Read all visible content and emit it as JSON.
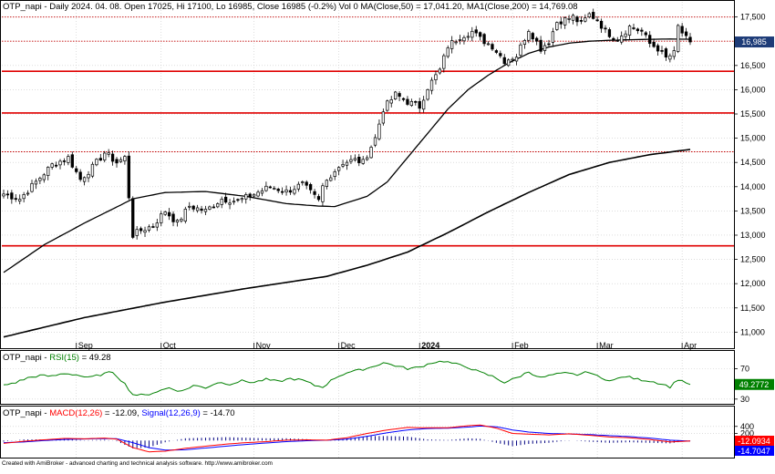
{
  "colors": {
    "background": "#ffffff",
    "grid": "#c8c8c8",
    "candle_up": "#ffffff",
    "candle_down": "#000000",
    "candle_border": "#000000",
    "ma50": "#000000",
    "ma200": "#000000",
    "support": "#e00000",
    "dotted": "#c00000",
    "rsi": "#008000",
    "macd": "#ff0000",
    "signal": "#0000ff",
    "hist": "#000080",
    "price_box": "#1e3c78",
    "rsi_box": "#008000",
    "macd_box": "#ff0000",
    "signal_box": "#0000ff"
  },
  "titles": {
    "price": "OTP_napi - Daily 2024. 04. 08. Open 17025, Hi 17100, Lo 16985, Close 16985 (-0.2%) Vol 0 MA(Close,50) = 17,041.20, MA1(Close,200) = 14,769.08",
    "rsi_prefix": "OTP_napi - ",
    "rsi_colored": "RSI(15)",
    "rsi_value": " = 49.28",
    "macd_prefix": "OTP_napi - ",
    "macd_colored": "MACD(12,26)",
    "macd_value": " = -12.09, ",
    "signal_colored": "Signal(12,26,9)",
    "signal_value": " = -14.70"
  },
  "footer": "Created with AmiBroker - advanced charting and technical analysis software. http://www.amibroker.com",
  "chart_data": [
    {
      "type": "candlestick",
      "name": "price",
      "ylim": [
        10800,
        17700
      ],
      "y_ticks": [
        11000,
        11500,
        12000,
        12500,
        13000,
        13500,
        14000,
        14500,
        15000,
        15500,
        16000,
        16500,
        17000,
        17500
      ],
      "y_tick_labels": [
        "11,000",
        "11,500",
        "12,000",
        "12,500",
        "13,000",
        "13,500",
        "14,000",
        "14,500",
        "15,000",
        "15,500",
        "16,000",
        "16,500",
        "17,000",
        "17,500"
      ],
      "x_labels": [
        {
          "index": 18,
          "label": "Sep"
        },
        {
          "index": 39,
          "label": "Oct"
        },
        {
          "index": 62,
          "label": "Nov"
        },
        {
          "index": 83,
          "label": "Dec"
        },
        {
          "index": 103,
          "label": "2024"
        },
        {
          "index": 126,
          "label": "Feb"
        },
        {
          "index": 147,
          "label": "Mar"
        },
        {
          "index": 168,
          "label": "Apr"
        }
      ],
      "horizontal_lines": [
        {
          "value": 16380,
          "style": "solid"
        },
        {
          "value": 15520,
          "style": "solid"
        },
        {
          "value": 12780,
          "style": "solid"
        },
        {
          "value": 17500,
          "style": "dotted"
        },
        {
          "value": 17000,
          "style": "dotted"
        },
        {
          "value": 14720,
          "style": "dotted"
        }
      ],
      "last_price": "16,985",
      "price_anchors": [
        [
          0,
          13850
        ],
        [
          4,
          13750
        ],
        [
          8,
          14100
        ],
        [
          12,
          14450
        ],
        [
          16,
          14600
        ],
        [
          19,
          14150
        ],
        [
          22,
          14400
        ],
        [
          25,
          14700
        ],
        [
          28,
          14500
        ],
        [
          30,
          14600
        ],
        [
          32,
          13000
        ],
        [
          34,
          13100
        ],
        [
          37,
          13200
        ],
        [
          40,
          13500
        ],
        [
          43,
          13250
        ],
        [
          46,
          13600
        ],
        [
          50,
          13500
        ],
        [
          54,
          13750
        ],
        [
          58,
          13700
        ],
        [
          62,
          13850
        ],
        [
          66,
          14000
        ],
        [
          70,
          13900
        ],
        [
          74,
          14050
        ],
        [
          78,
          13700
        ],
        [
          79,
          14000
        ],
        [
          81,
          14250
        ],
        [
          84,
          14500
        ],
        [
          87,
          14550
        ],
        [
          89,
          14500
        ],
        [
          92,
          15000
        ],
        [
          94,
          15600
        ],
        [
          97,
          15900
        ],
        [
          100,
          15750
        ],
        [
          103,
          15650
        ],
        [
          105,
          16050
        ],
        [
          108,
          16400
        ],
        [
          110,
          16900
        ],
        [
          113,
          17100
        ],
        [
          116,
          17200
        ],
        [
          118,
          17050
        ],
        [
          121,
          16900
        ],
        [
          124,
          16600
        ],
        [
          127,
          16700
        ],
        [
          130,
          17250
        ],
        [
          133,
          16850
        ],
        [
          135,
          17000
        ],
        [
          137,
          17400
        ],
        [
          139,
          17450
        ],
        [
          141,
          17500
        ],
        [
          143,
          17350
        ],
        [
          145,
          17550
        ],
        [
          147,
          17450
        ],
        [
          149,
          17200
        ],
        [
          152,
          17050
        ],
        [
          155,
          17300
        ],
        [
          158,
          17200
        ],
        [
          160,
          16950
        ],
        [
          162,
          16850
        ],
        [
          164,
          16650
        ],
        [
          166,
          16750
        ],
        [
          167,
          17300
        ],
        [
          169,
          17050
        ],
        [
          170,
          16985
        ]
      ],
      "ma50_anchors": [
        [
          0,
          12230
        ],
        [
          10,
          12800
        ],
        [
          20,
          13250
        ],
        [
          28,
          13580
        ],
        [
          32,
          13750
        ],
        [
          40,
          13880
        ],
        [
          50,
          13900
        ],
        [
          60,
          13800
        ],
        [
          70,
          13650
        ],
        [
          78,
          13600
        ],
        [
          82,
          13590
        ],
        [
          90,
          13800
        ],
        [
          95,
          14100
        ],
        [
          100,
          14600
        ],
        [
          105,
          15100
        ],
        [
          110,
          15600
        ],
        [
          115,
          16000
        ],
        [
          120,
          16300
        ],
        [
          125,
          16550
        ],
        [
          130,
          16750
        ],
        [
          135,
          16880
        ],
        [
          140,
          16960
        ],
        [
          145,
          17000
        ],
        [
          150,
          17020
        ],
        [
          155,
          17030
        ],
        [
          160,
          17040
        ],
        [
          165,
          17045
        ],
        [
          170,
          17041
        ]
      ],
      "ma200_anchors": [
        [
          0,
          10900
        ],
        [
          20,
          11300
        ],
        [
          40,
          11620
        ],
        [
          60,
          11900
        ],
        [
          80,
          12150
        ],
        [
          90,
          12380
        ],
        [
          100,
          12650
        ],
        [
          110,
          13050
        ],
        [
          120,
          13480
        ],
        [
          130,
          13880
        ],
        [
          140,
          14250
        ],
        [
          150,
          14500
        ],
        [
          160,
          14660
        ],
        [
          170,
          14769
        ]
      ]
    },
    {
      "type": "line",
      "name": "rsi",
      "ylim": [
        25,
        85
      ],
      "y_ticks": [
        30,
        70
      ],
      "y_tick_labels": [
        "30",
        "70"
      ],
      "current_value": "49.2772",
      "anchors": [
        [
          0,
          48
        ],
        [
          3,
          52
        ],
        [
          6,
          58
        ],
        [
          9,
          61
        ],
        [
          12,
          60
        ],
        [
          15,
          64
        ],
        [
          18,
          62
        ],
        [
          21,
          58
        ],
        [
          24,
          62
        ],
        [
          27,
          66
        ],
        [
          30,
          50
        ],
        [
          32,
          36
        ],
        [
          35,
          35
        ],
        [
          38,
          40
        ],
        [
          41,
          45
        ],
        [
          44,
          40
        ],
        [
          47,
          48
        ],
        [
          50,
          45
        ],
        [
          53,
          52
        ],
        [
          56,
          50
        ],
        [
          59,
          54
        ],
        [
          62,
          52
        ],
        [
          65,
          56
        ],
        [
          68,
          53
        ],
        [
          71,
          57
        ],
        [
          74,
          55
        ],
        [
          77,
          48
        ],
        [
          79,
          46
        ],
        [
          82,
          58
        ],
        [
          85,
          65
        ],
        [
          88,
          68
        ],
        [
          91,
          72
        ],
        [
          94,
          78
        ],
        [
          97,
          74
        ],
        [
          100,
          70
        ],
        [
          103,
          72
        ],
        [
          106,
          78
        ],
        [
          109,
          80
        ],
        [
          112,
          76
        ],
        [
          115,
          72
        ],
        [
          118,
          65
        ],
        [
          121,
          60
        ],
        [
          124,
          52
        ],
        [
          127,
          58
        ],
        [
          130,
          66
        ],
        [
          133,
          58
        ],
        [
          136,
          62
        ],
        [
          139,
          64
        ],
        [
          142,
          62
        ],
        [
          145,
          66
        ],
        [
          148,
          57
        ],
        [
          151,
          55
        ],
        [
          154,
          60
        ],
        [
          157,
          56
        ],
        [
          160,
          54
        ],
        [
          163,
          50
        ],
        [
          165,
          46
        ],
        [
          167,
          56
        ],
        [
          169,
          52
        ],
        [
          170,
          49.28
        ]
      ]
    },
    {
      "type": "macd",
      "name": "macd",
      "ylim": [
        -430,
        600
      ],
      "y_ticks": [
        200,
        400
      ],
      "y_tick_labels": [
        "200",
        "400"
      ],
      "zero_line": 0,
      "macd_value": "-12.0934",
      "signal_value": "-14.7047",
      "macd_anchors": [
        [
          0,
          -80
        ],
        [
          5,
          -20
        ],
        [
          10,
          20
        ],
        [
          15,
          60
        ],
        [
          20,
          50
        ],
        [
          25,
          70
        ],
        [
          28,
          40
        ],
        [
          32,
          -200
        ],
        [
          36,
          -320
        ],
        [
          40,
          -300
        ],
        [
          45,
          -220
        ],
        [
          50,
          -160
        ],
        [
          55,
          -100
        ],
        [
          60,
          -60
        ],
        [
          65,
          -30
        ],
        [
          70,
          10
        ],
        [
          75,
          20
        ],
        [
          80,
          10
        ],
        [
          85,
          80
        ],
        [
          90,
          200
        ],
        [
          95,
          300
        ],
        [
          100,
          370
        ],
        [
          105,
          360
        ],
        [
          110,
          360
        ],
        [
          115,
          420
        ],
        [
          118,
          440
        ],
        [
          122,
          350
        ],
        [
          126,
          200
        ],
        [
          130,
          180
        ],
        [
          135,
          160
        ],
        [
          140,
          190
        ],
        [
          145,
          150
        ],
        [
          150,
          100
        ],
        [
          155,
          80
        ],
        [
          160,
          30
        ],
        [
          165,
          -40
        ],
        [
          170,
          -12
        ]
      ],
      "signal_anchors": [
        [
          0,
          -60
        ],
        [
          5,
          -40
        ],
        [
          10,
          0
        ],
        [
          15,
          30
        ],
        [
          20,
          45
        ],
        [
          25,
          55
        ],
        [
          28,
          52
        ],
        [
          32,
          -60
        ],
        [
          36,
          -200
        ],
        [
          40,
          -270
        ],
        [
          45,
          -260
        ],
        [
          50,
          -210
        ],
        [
          55,
          -160
        ],
        [
          60,
          -110
        ],
        [
          65,
          -70
        ],
        [
          70,
          -30
        ],
        [
          75,
          -5
        ],
        [
          80,
          10
        ],
        [
          85,
          40
        ],
        [
          90,
          120
        ],
        [
          95,
          220
        ],
        [
          100,
          300
        ],
        [
          105,
          340
        ],
        [
          110,
          350
        ],
        [
          115,
          380
        ],
        [
          118,
          410
        ],
        [
          122,
          390
        ],
        [
          126,
          300
        ],
        [
          130,
          240
        ],
        [
          135,
          200
        ],
        [
          140,
          185
        ],
        [
          145,
          170
        ],
        [
          150,
          140
        ],
        [
          155,
          110
        ],
        [
          160,
          70
        ],
        [
          165,
          10
        ],
        [
          170,
          -15
        ]
      ]
    }
  ]
}
